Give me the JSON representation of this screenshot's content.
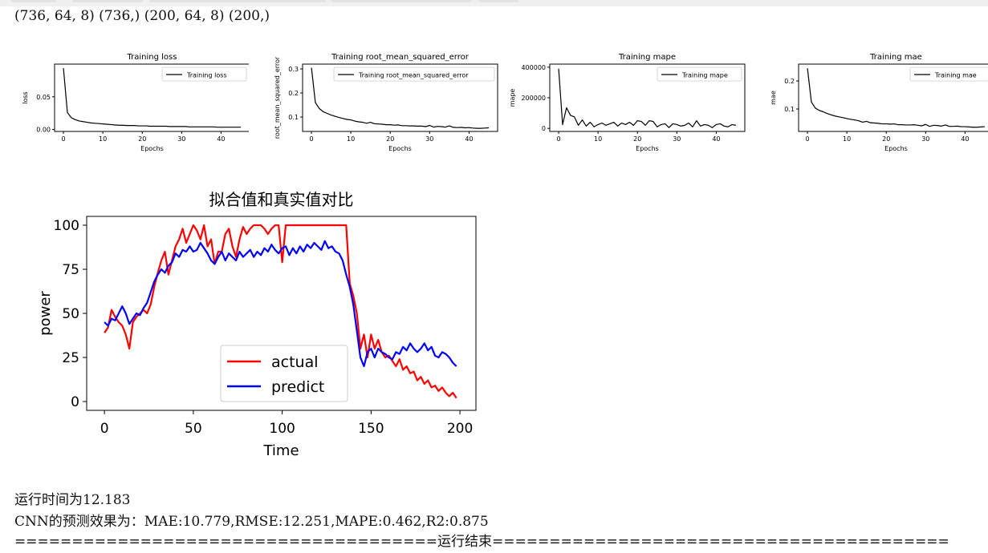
{
  "shape_line": "(736, 64, 8) (736,) (200, 64, 8) (200,)",
  "chart_data": [
    {
      "type": "line",
      "title": "Training loss",
      "xlabel": "Epochs",
      "ylabel": "loss",
      "legend": "top-right",
      "xlim": [
        -2.25,
        47.25
      ],
      "ylim": [
        -0.003,
        0.1
      ],
      "xticks": [
        "0",
        "10",
        "20",
        "30",
        "40"
      ],
      "yticks": [
        "0.00",
        "0.05"
      ],
      "series": [
        {
          "name": "Training loss",
          "color": "#000000",
          "x": [
            0,
            1,
            2,
            3,
            4,
            5,
            6,
            7,
            8,
            9,
            10,
            11,
            12,
            13,
            14,
            15,
            16,
            17,
            18,
            19,
            20,
            21,
            22,
            23,
            24,
            25,
            26,
            27,
            28,
            29,
            30,
            31,
            32,
            33,
            34,
            35,
            36,
            37,
            38,
            39,
            40,
            41,
            42,
            43,
            44,
            45
          ],
          "values": [
            0.094,
            0.026,
            0.018,
            0.015,
            0.013,
            0.012,
            0.011,
            0.01,
            0.0095,
            0.009,
            0.0085,
            0.008,
            0.0075,
            0.007,
            0.0065,
            0.0065,
            0.006,
            0.006,
            0.006,
            0.0055,
            0.0055,
            0.0055,
            0.005,
            0.005,
            0.005,
            0.005,
            0.005,
            0.0045,
            0.0045,
            0.0045,
            0.0045,
            0.0045,
            0.004,
            0.004,
            0.004,
            0.004,
            0.004,
            0.004,
            0.004,
            0.0035,
            0.0035,
            0.0035,
            0.0035,
            0.0035,
            0.0035,
            0.0035
          ]
        }
      ]
    },
    {
      "type": "line",
      "title": "Training root_mean_squared_error",
      "xlabel": "Epochs",
      "ylabel": "root_mean_squared_error",
      "legend": "top-right",
      "xlim": [
        -2.25,
        47.25
      ],
      "ylim": [
        0.04,
        0.32
      ],
      "xticks": [
        "0",
        "10",
        "20",
        "30",
        "40"
      ],
      "yticks": [
        "0.1",
        "0.2",
        "0.3"
      ],
      "series": [
        {
          "name": "Training root_mean_squared_error",
          "color": "#000000",
          "x": [
            0,
            1,
            2,
            3,
            4,
            5,
            6,
            7,
            8,
            9,
            10,
            11,
            12,
            13,
            14,
            15,
            16,
            17,
            18,
            19,
            20,
            21,
            22,
            23,
            24,
            25,
            26,
            27,
            28,
            29,
            30,
            31,
            32,
            33,
            34,
            35,
            36,
            37,
            38,
            39,
            40,
            41,
            42,
            43,
            44,
            45
          ],
          "values": [
            0.305,
            0.16,
            0.135,
            0.122,
            0.115,
            0.108,
            0.103,
            0.098,
            0.094,
            0.09,
            0.088,
            0.083,
            0.08,
            0.078,
            0.074,
            0.078,
            0.072,
            0.071,
            0.07,
            0.068,
            0.068,
            0.066,
            0.067,
            0.064,
            0.064,
            0.063,
            0.063,
            0.062,
            0.062,
            0.06,
            0.065,
            0.058,
            0.061,
            0.06,
            0.058,
            0.063,
            0.057,
            0.056,
            0.057,
            0.055,
            0.056,
            0.054,
            0.053,
            0.053,
            0.054,
            0.055
          ]
        }
      ]
    },
    {
      "type": "line",
      "title": "Training mape",
      "xlabel": "Epochs",
      "ylabel": "mape",
      "legend": "top-right",
      "xlim": [
        -2.25,
        47.25
      ],
      "ylim": [
        -20000,
        420000
      ],
      "xticks": [
        "0",
        "10",
        "20",
        "30",
        "40"
      ],
      "yticks": [
        "0",
        "200000",
        "400000"
      ],
      "series": [
        {
          "name": "Training mape",
          "color": "#000000",
          "x": [
            0,
            1,
            2,
            3,
            4,
            5,
            6,
            7,
            8,
            9,
            10,
            11,
            12,
            13,
            14,
            15,
            16,
            17,
            18,
            19,
            20,
            21,
            22,
            23,
            24,
            25,
            26,
            27,
            28,
            29,
            30,
            31,
            32,
            33,
            34,
            35,
            36,
            37,
            38,
            39,
            40,
            41,
            42,
            43,
            44,
            45
          ],
          "values": [
            390000,
            25000,
            135000,
            85000,
            75000,
            20000,
            55000,
            15000,
            40000,
            10000,
            25000,
            35000,
            20000,
            30000,
            40000,
            15000,
            35000,
            25000,
            40000,
            20000,
            50000,
            45000,
            20000,
            50000,
            45000,
            10000,
            25000,
            30000,
            5000,
            30000,
            25000,
            15000,
            20000,
            35000,
            10000,
            50000,
            15000,
            25000,
            20000,
            5000,
            25000,
            30000,
            15000,
            10000,
            25000,
            20000
          ]
        }
      ]
    },
    {
      "type": "line",
      "title": "Training mae",
      "xlabel": "Epochs",
      "ylabel": "mae",
      "legend": "top-right",
      "xlim": [
        -2.25,
        47.25
      ],
      "ylim": [
        0.02,
        0.26
      ],
      "xticks": [
        "0",
        "10",
        "20",
        "30",
        "40"
      ],
      "yticks": [
        "0.1",
        "0.2"
      ],
      "series": [
        {
          "name": "Training mae",
          "color": "#000000",
          "x": [
            0,
            1,
            2,
            3,
            4,
            5,
            6,
            7,
            8,
            9,
            10,
            11,
            12,
            13,
            14,
            15,
            16,
            17,
            18,
            19,
            20,
            21,
            22,
            23,
            24,
            25,
            26,
            27,
            28,
            29,
            30,
            31,
            32,
            33,
            34,
            35,
            36,
            37,
            38,
            39,
            40,
            41,
            42,
            43,
            44,
            45
          ],
          "values": [
            0.245,
            0.125,
            0.103,
            0.095,
            0.09,
            0.084,
            0.079,
            0.075,
            0.072,
            0.069,
            0.066,
            0.063,
            0.061,
            0.058,
            0.053,
            0.056,
            0.051,
            0.05,
            0.049,
            0.047,
            0.047,
            0.046,
            0.047,
            0.044,
            0.044,
            0.043,
            0.043,
            0.044,
            0.042,
            0.04,
            0.045,
            0.038,
            0.042,
            0.041,
            0.039,
            0.043,
            0.038,
            0.038,
            0.039,
            0.037,
            0.037,
            0.036,
            0.035,
            0.035,
            0.036,
            0.037
          ]
        }
      ]
    },
    {
      "type": "line",
      "title": "拟合值和真实值对比",
      "xlabel": "Time",
      "ylabel": "power",
      "legend": "bottom-center",
      "xlim": [
        -10,
        209
      ],
      "ylim": [
        -5,
        105
      ],
      "xticks": [
        "0",
        "50",
        "100",
        "150",
        "200"
      ],
      "yticks": [
        "0",
        "25",
        "50",
        "75",
        "100"
      ],
      "series": [
        {
          "name": "actual",
          "color": "#ff0000",
          "x": [
            0,
            2,
            4,
            6,
            8,
            10,
            12,
            14,
            16,
            18,
            20,
            22,
            24,
            26,
            28,
            30,
            32,
            34,
            36,
            38,
            40,
            42,
            44,
            46,
            48,
            50,
            52,
            54,
            56,
            58,
            60,
            62,
            64,
            66,
            68,
            70,
            72,
            74,
            76,
            78,
            80,
            82,
            84,
            86,
            88,
            90,
            92,
            94,
            96,
            98,
            100,
            102,
            104,
            106,
            108,
            110,
            112,
            114,
            116,
            118,
            120,
            122,
            124,
            126,
            128,
            130,
            132,
            134,
            136,
            138,
            140,
            142,
            144,
            146,
            148,
            150,
            152,
            154,
            156,
            158,
            160,
            162,
            164,
            166,
            168,
            170,
            172,
            174,
            176,
            178,
            180,
            182,
            184,
            186,
            188,
            190,
            192,
            194,
            196,
            198
          ],
          "values": [
            39,
            42,
            52,
            48,
            45,
            43,
            38,
            30,
            45,
            48,
            50,
            52,
            50,
            55,
            65,
            73,
            80,
            85,
            72,
            80,
            88,
            92,
            98,
            90,
            95,
            100,
            97,
            92,
            100,
            88,
            92,
            78,
            85,
            85,
            95,
            98,
            88,
            82,
            92,
            99,
            95,
            98,
            100,
            100,
            100,
            98,
            95,
            98,
            100,
            100,
            79,
            100,
            100,
            100,
            100,
            100,
            100,
            100,
            100,
            100,
            100,
            100,
            100,
            100,
            100,
            100,
            100,
            100,
            100,
            67,
            60,
            50,
            30,
            38,
            25,
            38,
            30,
            35,
            28,
            25,
            26,
            23,
            20,
            24,
            18,
            20,
            16,
            17,
            12,
            14,
            10,
            12,
            8,
            9,
            6,
            8,
            5,
            3,
            5,
            2
          ]
        },
        {
          "name": "predict",
          "color": "#0000ff",
          "x": [
            0,
            2,
            4,
            6,
            8,
            10,
            12,
            14,
            16,
            18,
            20,
            22,
            24,
            26,
            28,
            30,
            32,
            34,
            36,
            38,
            40,
            42,
            44,
            46,
            48,
            50,
            52,
            54,
            56,
            58,
            60,
            62,
            64,
            66,
            68,
            70,
            72,
            74,
            76,
            78,
            80,
            82,
            84,
            86,
            88,
            90,
            92,
            94,
            96,
            98,
            100,
            102,
            104,
            106,
            108,
            110,
            112,
            114,
            116,
            118,
            120,
            122,
            124,
            126,
            128,
            130,
            132,
            134,
            136,
            138,
            140,
            142,
            144,
            146,
            148,
            150,
            152,
            154,
            156,
            158,
            160,
            162,
            164,
            166,
            168,
            170,
            172,
            174,
            176,
            178,
            180,
            182,
            184,
            186,
            188,
            190,
            192,
            194,
            196,
            198
          ],
          "values": [
            45,
            43,
            47,
            46,
            50,
            54,
            50,
            44,
            47,
            50,
            49,
            53,
            56,
            62,
            68,
            72,
            75,
            73,
            77,
            79,
            84,
            82,
            86,
            85,
            88,
            85,
            86,
            90,
            87,
            84,
            80,
            78,
            82,
            85,
            80,
            84,
            82,
            80,
            85,
            82,
            84,
            86,
            82,
            85,
            83,
            87,
            85,
            89,
            86,
            84,
            87,
            88,
            83,
            87,
            84,
            88,
            85,
            89,
            87,
            90,
            88,
            86,
            91,
            87,
            88,
            85,
            84,
            80,
            72,
            65,
            55,
            40,
            25,
            20,
            28,
            30,
            25,
            30,
            28,
            27,
            25,
            24,
            28,
            27,
            31,
            29,
            33,
            30,
            28,
            30,
            33,
            29,
            31,
            26,
            25,
            28,
            27,
            25,
            22,
            20
          ]
        }
      ]
    }
  ],
  "results": {
    "runtime": "运行时间为12.183",
    "metrics": "CNN的预测效果为：MAE:10.779,RMSE:12.251,MAPE:0.462,R2:0.875",
    "end_line": "=====================================运行结束========================================"
  }
}
